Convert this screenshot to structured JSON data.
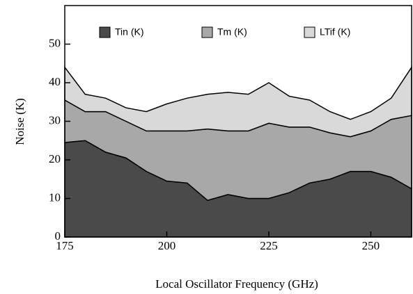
{
  "chart_data": {
    "type": "stacked_area",
    "xlabel": "Local Oscillator Frequency (GHz)",
    "ylabel": "Noise (K)",
    "x": [
      175,
      180,
      185,
      190,
      195,
      200,
      205,
      210,
      215,
      220,
      225,
      230,
      235,
      240,
      245,
      250,
      255,
      260
    ],
    "series": [
      {
        "name": "Tin (K)",
        "color": "#4a4a4a",
        "values": [
          24.5,
          25,
          22,
          20.5,
          17,
          14.5,
          14,
          9.5,
          11,
          10,
          10,
          11.5,
          14,
          15,
          17,
          17,
          15.5,
          12.5
        ]
      },
      {
        "name": "Tm (K)",
        "color": "#a8a8a8",
        "values": [
          11,
          7.5,
          10.5,
          9.5,
          10.5,
          13,
          13.5,
          18.5,
          16.5,
          17.5,
          19.5,
          17,
          14.5,
          12,
          9,
          10.5,
          15,
          19
        ]
      },
      {
        "name": "LTif (K)",
        "color": "#d9d9d9",
        "values": [
          8.5,
          4.5,
          3.5,
          3.5,
          5,
          7,
          8.5,
          9,
          10,
          9.5,
          10.5,
          8,
          7,
          5.5,
          4.5,
          5,
          5.5,
          12.5
        ]
      }
    ],
    "xlim": [
      175,
      260
    ],
    "xticks": [
      175,
      200,
      225,
      250
    ],
    "ylim": [
      0,
      60
    ],
    "yticks": [
      0,
      10,
      20,
      30,
      40,
      50
    ],
    "legend": "top"
  }
}
